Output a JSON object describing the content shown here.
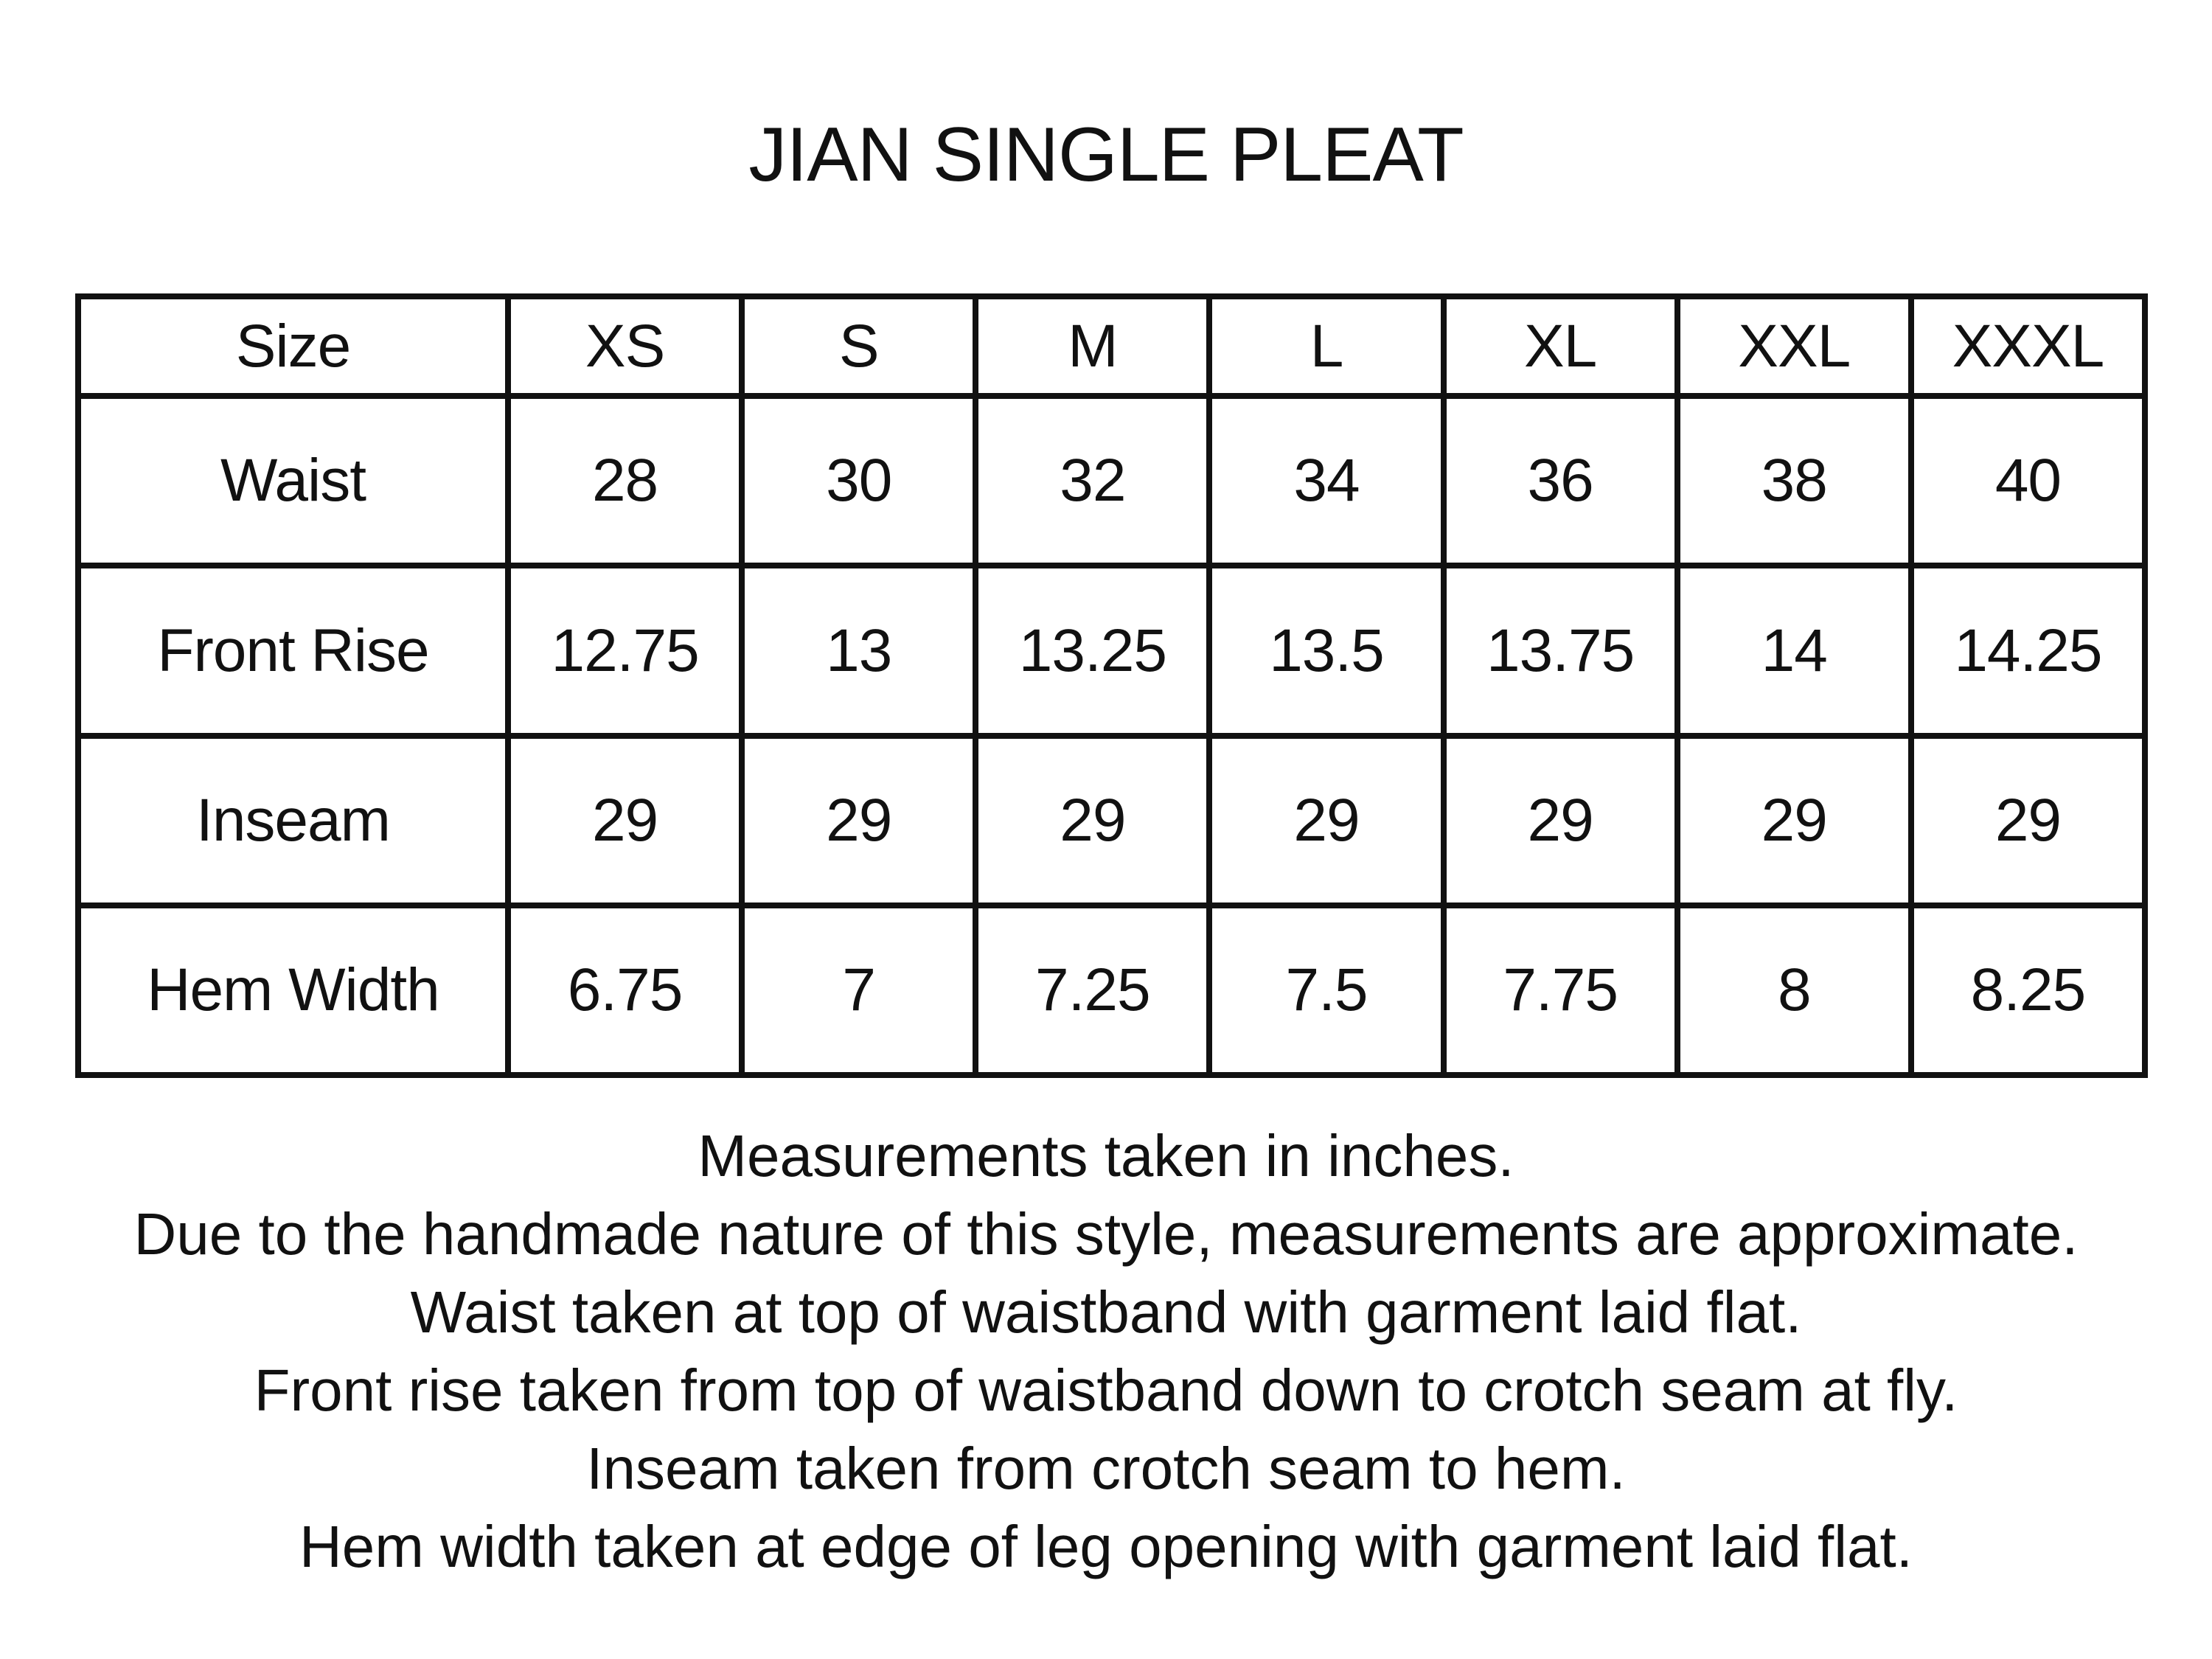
{
  "title": "JIAN SINGLE PLEAT",
  "table": {
    "header": [
      "Size",
      "XS",
      "S",
      "M",
      "L",
      "XL",
      "XXL",
      "XXXL"
    ],
    "rows": [
      [
        "Waist",
        "28",
        "30",
        "32",
        "34",
        "36",
        "38",
        "40"
      ],
      [
        "Front Rise",
        "12.75",
        "13",
        "13.25",
        "13.5",
        "13.75",
        "14",
        "14.25"
      ],
      [
        "Inseam",
        "29",
        "29",
        "29",
        "29",
        "29",
        "29",
        "29"
      ],
      [
        "Hem Width",
        "6.75",
        "7",
        "7.25",
        "7.5",
        "7.75",
        "8",
        "8.25"
      ]
    ]
  },
  "notes": [
    "Measurements taken in inches.",
    "Due to the handmade nature of this style, measurements are approximate.",
    "Waist taken at top of waistband with garment laid flat.",
    "Front rise taken from top of waistband down to crotch seam at fly.",
    "Inseam taken from crotch seam to hem.",
    "Hem width taken at edge of leg opening with garment laid flat."
  ]
}
